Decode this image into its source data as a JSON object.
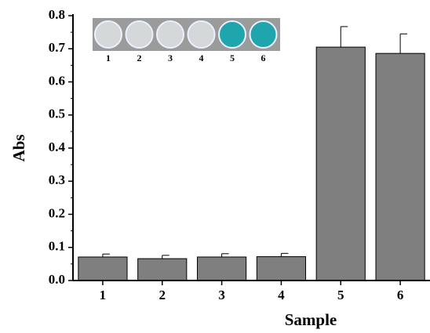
{
  "chart_data": {
    "type": "bar",
    "xlabel": "Sample",
    "ylabel": "Abs",
    "categories": [
      "1",
      "2",
      "3",
      "4",
      "5",
      "6"
    ],
    "values": [
      0.071,
      0.066,
      0.071,
      0.072,
      0.705,
      0.686
    ],
    "errors": [
      0.009,
      0.01,
      0.01,
      0.01,
      0.062,
      0.059
    ],
    "color": "#7f7f7f",
    "ylim": [
      0,
      0.8
    ],
    "yticks": [
      {
        "value": 0,
        "label": "0.0"
      },
      0.1,
      0.2,
      0.3,
      0.4,
      0.5,
      0.6,
      0.7,
      0.8
    ],
    "grid": false,
    "inset": {
      "labels": [
        "1",
        "2",
        "3",
        "4",
        "5",
        "6"
      ],
      "well_colors": [
        "#d4d8d8",
        "#d4d8d8",
        "#d4d8d8",
        "#d4d8d8",
        "#1fa6ad",
        "#1fa6ad"
      ]
    }
  }
}
